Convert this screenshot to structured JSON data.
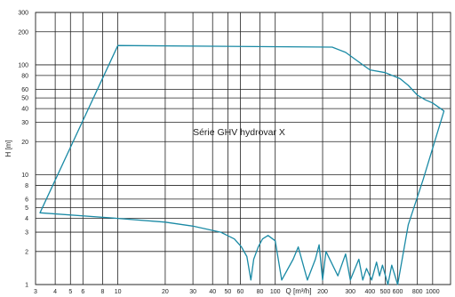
{
  "chart_data": {
    "type": "line",
    "annotation": "Série GHV hydrovar X",
    "xlabel": "Q [m³/h]",
    "ylabel": "H [m]",
    "x_scale": "log",
    "y_scale": "log",
    "xlim": [
      3,
      1300
    ],
    "ylim": [
      1,
      300
    ],
    "grid": true,
    "colors": {
      "curve": "#1a8aa5",
      "grid": "#222222",
      "text": "#222222"
    },
    "x_ticks": [
      {
        "value": 3,
        "label": "3"
      },
      {
        "value": 4,
        "label": "4"
      },
      {
        "value": 5,
        "label": "5"
      },
      {
        "value": 6,
        "label": "6"
      },
      {
        "value": 8,
        "label": "8"
      },
      {
        "value": 10,
        "label": "10"
      },
      {
        "value": 20,
        "label": "20"
      },
      {
        "value": 30,
        "label": "30"
      },
      {
        "value": 40,
        "label": "40"
      },
      {
        "value": 50,
        "label": "50"
      },
      {
        "value": 60,
        "label": "60"
      },
      {
        "value": 80,
        "label": "80"
      },
      {
        "value": 100,
        "label": "100"
      },
      {
        "value": 200,
        "label": "200"
      },
      {
        "value": 300,
        "label": "300"
      },
      {
        "value": 400,
        "label": "400"
      },
      {
        "value": 500,
        "label": "500"
      },
      {
        "value": 600,
        "label": "600"
      },
      {
        "value": 800,
        "label": "800"
      },
      {
        "value": 1000,
        "label": "1000"
      }
    ],
    "y_ticks": [
      {
        "value": 1,
        "label": "1"
      },
      {
        "value": 2,
        "label": "2"
      },
      {
        "value": 3,
        "label": "3"
      },
      {
        "value": 4,
        "label": "4"
      },
      {
        "value": 5,
        "label": "5"
      },
      {
        "value": 6,
        "label": "6"
      },
      {
        "value": 8,
        "label": "8"
      },
      {
        "value": 10,
        "label": "10"
      },
      {
        "value": 20,
        "label": "20"
      },
      {
        "value": 30,
        "label": "30"
      },
      {
        "value": 40,
        "label": "40"
      },
      {
        "value": 50,
        "label": "50"
      },
      {
        "value": 60,
        "label": "60"
      },
      {
        "value": 80,
        "label": "80"
      },
      {
        "value": 100,
        "label": "100"
      },
      {
        "value": 200,
        "label": "200"
      },
      {
        "value": 300,
        "label": "300"
      }
    ],
    "series": [
      {
        "x": [
          3.2,
          10,
          230,
          280,
          360,
          400,
          500,
          620,
          700,
          800,
          900,
          1000,
          1180,
          870,
          700,
          600,
          550,
          520,
          480,
          460,
          440,
          410,
          380,
          360,
          340,
          300,
          280,
          250,
          210,
          200,
          190,
          180,
          160,
          140,
          130,
          110,
          100,
          90,
          83,
          78,
          73,
          70,
          66,
          61,
          55,
          45,
          30,
          20,
          10,
          3.2
        ],
        "y": [
          4.5,
          150,
          145,
          130,
          100,
          90,
          85,
          75,
          65,
          53,
          48,
          45,
          38,
          9,
          3.5,
          1.0,
          1.5,
          1.0,
          1.5,
          1.2,
          1.6,
          1.1,
          1.4,
          1.1,
          1.7,
          1.1,
          1.9,
          1.2,
          2.0,
          1.1,
          2.3,
          1.7,
          1.1,
          2.2,
          1.7,
          1.1,
          2.5,
          2.8,
          2.6,
          2.2,
          1.7,
          1.1,
          1.8,
          2.2,
          2.6,
          3.0,
          3.4,
          3.7,
          4.0,
          4.5
        ]
      }
    ]
  }
}
